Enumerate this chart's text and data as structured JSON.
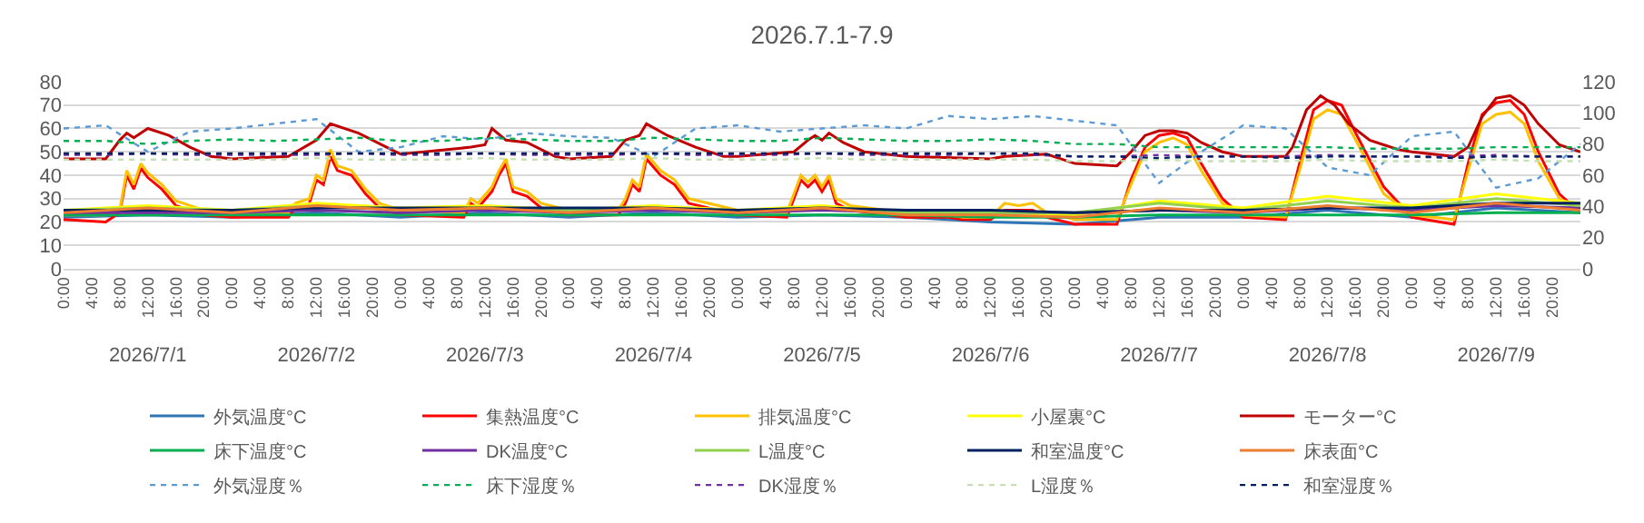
{
  "chart_data": {
    "type": "line",
    "title": "2026.7.1-7.9",
    "x": [
      "2026-07-01T00:00",
      "2026-07-01T12:00",
      "2026-07-02T00:00",
      "2026-07-02T12:00",
      "2026-07-03T00:00",
      "2026-07-03T12:00",
      "2026-07-04T00:00",
      "2026-07-04T12:00",
      "2026-07-05T00:00",
      "2026-07-05T12:00",
      "2026-07-06T00:00",
      "2026-07-06T12:00",
      "2026-07-07T00:00",
      "2026-07-07T12:00",
      "2026-07-08T00:00",
      "2026-07-08T12:00",
      "2026-07-09T00:00",
      "2026-07-09T12:00",
      "2026-07-10T00:00"
    ],
    "xlim": [
      "2026-07-01T00:00",
      "2026-07-10T00:00"
    ],
    "xticks": [
      {
        "value": "2026-07-01T00:00",
        "label": "0:00"
      },
      {
        "value": "2026-07-01T04:00",
        "label": "4:00"
      },
      {
        "value": "2026-07-01T08:00",
        "label": "8:00"
      },
      {
        "value": "2026-07-01T12:00",
        "label": "12:00"
      },
      {
        "value": "2026-07-01T16:00",
        "label": "16:00"
      },
      {
        "value": "2026-07-01T20:00",
        "label": "20:00"
      },
      {
        "value": "2026-07-02T00:00",
        "label": "0:00"
      },
      {
        "value": "2026-07-02T04:00",
        "label": "4:00"
      },
      {
        "value": "2026-07-02T08:00",
        "label": "8:00"
      },
      {
        "value": "2026-07-02T12:00",
        "label": "12:00"
      },
      {
        "value": "2026-07-02T16:00",
        "label": "16:00"
      },
      {
        "value": "2026-07-02T20:00",
        "label": "20:00"
      },
      {
        "value": "2026-07-03T00:00",
        "label": "0:00"
      },
      {
        "value": "2026-07-03T04:00",
        "label": "4:00"
      },
      {
        "value": "2026-07-03T08:00",
        "label": "8:00"
      },
      {
        "value": "2026-07-03T12:00",
        "label": "12:00"
      },
      {
        "value": "2026-07-03T16:00",
        "label": "16:00"
      },
      {
        "value": "2026-07-03T20:00",
        "label": "20:00"
      },
      {
        "value": "2026-07-04T00:00",
        "label": "0:00"
      },
      {
        "value": "2026-07-04T04:00",
        "label": "4:00"
      },
      {
        "value": "2026-07-04T08:00",
        "label": "8:00"
      },
      {
        "value": "2026-07-04T12:00",
        "label": "12:00"
      },
      {
        "value": "2026-07-04T16:00",
        "label": "16:00"
      },
      {
        "value": "2026-07-04T20:00",
        "label": "20:00"
      },
      {
        "value": "2026-07-05T00:00",
        "label": "0:00"
      },
      {
        "value": "2026-07-05T04:00",
        "label": "4:00"
      },
      {
        "value": "2026-07-05T08:00",
        "label": "8:00"
      },
      {
        "value": "2026-07-05T12:00",
        "label": "12:00"
      },
      {
        "value": "2026-07-05T16:00",
        "label": "16:00"
      },
      {
        "value": "2026-07-05T20:00",
        "label": "20:00"
      },
      {
        "value": "2026-07-06T00:00",
        "label": "0:00"
      },
      {
        "value": "2026-07-06T04:00",
        "label": "4:00"
      },
      {
        "value": "2026-07-06T08:00",
        "label": "8:00"
      },
      {
        "value": "2026-07-06T12:00",
        "label": "12:00"
      },
      {
        "value": "2026-07-06T16:00",
        "label": "16:00"
      },
      {
        "value": "2026-07-06T20:00",
        "label": "20:00"
      },
      {
        "value": "2026-07-07T00:00",
        "label": "0:00"
      },
      {
        "value": "2026-07-07T04:00",
        "label": "4:00"
      },
      {
        "value": "2026-07-07T08:00",
        "label": "8:00"
      },
      {
        "value": "2026-07-07T12:00",
        "label": "12:00"
      },
      {
        "value": "2026-07-07T16:00",
        "label": "16:00"
      },
      {
        "value": "2026-07-07T20:00",
        "label": "20:00"
      },
      {
        "value": "2026-07-08T00:00",
        "label": "0:00"
      },
      {
        "value": "2026-07-08T04:00",
        "label": "4:00"
      },
      {
        "value": "2026-07-08T08:00",
        "label": "8:00"
      },
      {
        "value": "2026-07-08T12:00",
        "label": "12:00"
      },
      {
        "value": "2026-07-08T16:00",
        "label": "16:00"
      },
      {
        "value": "2026-07-08T20:00",
        "label": "20:00"
      },
      {
        "value": "2026-07-09T00:00",
        "label": "0:00"
      },
      {
        "value": "2026-07-09T04:00",
        "label": "4:00"
      },
      {
        "value": "2026-07-09T08:00",
        "label": "8:00"
      },
      {
        "value": "2026-07-09T12:00",
        "label": "12:00"
      },
      {
        "value": "2026-07-09T16:00",
        "label": "16:00"
      },
      {
        "value": "2026-07-09T20:00",
        "label": "20:00"
      }
    ],
    "x2lim": [
      "2026-07-01T00:00",
      "2026-07-10T00:00"
    ],
    "x2ticks": [
      {
        "value": "2026-07-01T12:00",
        "label": "2026/7/1"
      },
      {
        "value": "2026-07-02T12:00",
        "label": "2026/7/2"
      },
      {
        "value": "2026-07-03T12:00",
        "label": "2026/7/3"
      },
      {
        "value": "2026-07-04T12:00",
        "label": "2026/7/4"
      },
      {
        "value": "2026-07-05T12:00",
        "label": "2026/7/5"
      },
      {
        "value": "2026-07-06T12:00",
        "label": "2026/7/6"
      },
      {
        "value": "2026-07-07T12:00",
        "label": "2026/7/7"
      },
      {
        "value": "2026-07-08T12:00",
        "label": "2026/7/8"
      },
      {
        "value": "2026-07-09T12:00",
        "label": "2026/7/9"
      }
    ],
    "ylim": [
      0,
      80
    ],
    "yticks": [
      0,
      10,
      20,
      30,
      40,
      50,
      60,
      70,
      80
    ],
    "y2lim": [
      0,
      120
    ],
    "y2ticks": [
      0,
      20,
      40,
      60,
      80,
      100,
      120
    ],
    "grid": "y",
    "legend": "bottom",
    "series": [
      {
        "name": "外気温度°C",
        "color": "#2e75b6",
        "line_style": "solid",
        "values": [
          22,
          23,
          22,
          24,
          22,
          24,
          22,
          24,
          22,
          23,
          22,
          20,
          19,
          22,
          22,
          25,
          22,
          26,
          24
        ]
      },
      {
        "name": "集熱温度°C",
        "color": "#ff0000",
        "line_style": "solid",
        "x": [
          "2026-07-01T00:00",
          "2026-07-01T06:00",
          "2026-07-01T08:00",
          "2026-07-01T09:00",
          "2026-07-01T10:00",
          "2026-07-01T11:00",
          "2026-07-01T12:00",
          "2026-07-01T14:00",
          "2026-07-01T16:00",
          "2026-07-01T18:00",
          "2026-07-01T20:00",
          "2026-07-02T00:00",
          "2026-07-02T08:00",
          "2026-07-02T09:00",
          "2026-07-02T11:00",
          "2026-07-02T12:00",
          "2026-07-02T13:00",
          "2026-07-02T14:00",
          "2026-07-02T15:00",
          "2026-07-02T17:00",
          "2026-07-02T19:00",
          "2026-07-02T21:00",
          "2026-07-03T00:00",
          "2026-07-03T09:00",
          "2026-07-03T10:00",
          "2026-07-03T11:00",
          "2026-07-03T13:00",
          "2026-07-03T14:00",
          "2026-07-03T15:00",
          "2026-07-03T16:00",
          "2026-07-03T18:00",
          "2026-07-03T20:00",
          "2026-07-04T00:00",
          "2026-07-04T07:00",
          "2026-07-04T08:00",
          "2026-07-04T09:00",
          "2026-07-04T10:00",
          "2026-07-04T11:00",
          "2026-07-04T13:00",
          "2026-07-04T15:00",
          "2026-07-04T17:00",
          "2026-07-05T00:00",
          "2026-07-05T07:00",
          "2026-07-05T08:00",
          "2026-07-05T09:00",
          "2026-07-05T10:00",
          "2026-07-05T11:00",
          "2026-07-05T12:00",
          "2026-07-05T13:00",
          "2026-07-05T14:00",
          "2026-07-05T16:00",
          "2026-07-06T00:00",
          "2026-07-06T06:00",
          "2026-07-06T08:00",
          "2026-07-06T12:00",
          "2026-07-06T14:00",
          "2026-07-06T16:00",
          "2026-07-06T18:00",
          "2026-07-06T20:00",
          "2026-07-07T00:00",
          "2026-07-07T06:00",
          "2026-07-07T08:00",
          "2026-07-07T10:00",
          "2026-07-07T12:00",
          "2026-07-07T14:00",
          "2026-07-07T16:00",
          "2026-07-07T18:00",
          "2026-07-07T21:00",
          "2026-07-08T00:00",
          "2026-07-08T06:00",
          "2026-07-08T08:00",
          "2026-07-08T10:00",
          "2026-07-08T12:00",
          "2026-07-08T14:00",
          "2026-07-08T16:00",
          "2026-07-08T20:00",
          "2026-07-09T00:00",
          "2026-07-09T06:00",
          "2026-07-09T08:00",
          "2026-07-09T10:00",
          "2026-07-09T12:00",
          "2026-07-09T14:00",
          "2026-07-09T16:00",
          "2026-07-09T18:00",
          "2026-07-09T21:00",
          "2026-07-10T00:00"
        ],
        "values": [
          21,
          20,
          24,
          40,
          34,
          43,
          39,
          34,
          27,
          25,
          23,
          22,
          22,
          26,
          28,
          38,
          36,
          48,
          42,
          40,
          32,
          26,
          23,
          22,
          28,
          26,
          33,
          40,
          45,
          33,
          31,
          26,
          23,
          23,
          28,
          36,
          33,
          47,
          40,
          36,
          28,
          23,
          22,
          30,
          38,
          35,
          38,
          33,
          38,
          28,
          25,
          22,
          22,
          21,
          21,
          25,
          25,
          25,
          22,
          19,
          19,
          38,
          52,
          57,
          58,
          56,
          45,
          30,
          22,
          21,
          45,
          68,
          72,
          70,
          58,
          35,
          22,
          19,
          45,
          66,
          71,
          72,
          66,
          50,
          32,
          24
        ]
      },
      {
        "name": "排気温度°C",
        "color": "#ffc000",
        "line_style": "solid",
        "x": [
          "2026-07-01T00:00",
          "2026-07-01T06:00",
          "2026-07-01T08:00",
          "2026-07-01T09:00",
          "2026-07-01T10:00",
          "2026-07-01T11:00",
          "2026-07-01T12:00",
          "2026-07-01T14:00",
          "2026-07-01T16:00",
          "2026-07-01T18:00",
          "2026-07-01T20:00",
          "2026-07-02T00:00",
          "2026-07-02T08:00",
          "2026-07-02T09:00",
          "2026-07-02T11:00",
          "2026-07-02T12:00",
          "2026-07-02T13:00",
          "2026-07-02T14:00",
          "2026-07-02T15:00",
          "2026-07-02T17:00",
          "2026-07-02T19:00",
          "2026-07-02T21:00",
          "2026-07-03T00:00",
          "2026-07-03T09:00",
          "2026-07-03T10:00",
          "2026-07-03T11:00",
          "2026-07-03T13:00",
          "2026-07-03T14:00",
          "2026-07-03T15:00",
          "2026-07-03T16:00",
          "2026-07-03T18:00",
          "2026-07-03T20:00",
          "2026-07-04T00:00",
          "2026-07-04T07:00",
          "2026-07-04T08:00",
          "2026-07-04T09:00",
          "2026-07-04T10:00",
          "2026-07-04T11:00",
          "2026-07-04T13:00",
          "2026-07-04T15:00",
          "2026-07-04T17:00",
          "2026-07-05T00:00",
          "2026-07-05T07:00",
          "2026-07-05T08:00",
          "2026-07-05T09:00",
          "2026-07-05T10:00",
          "2026-07-05T11:00",
          "2026-07-05T12:00",
          "2026-07-05T13:00",
          "2026-07-05T14:00",
          "2026-07-05T16:00",
          "2026-07-06T00:00",
          "2026-07-06T06:00",
          "2026-07-06T08:00",
          "2026-07-06T12:00",
          "2026-07-06T14:00",
          "2026-07-06T16:00",
          "2026-07-06T18:00",
          "2026-07-06T20:00",
          "2026-07-07T00:00",
          "2026-07-07T06:00",
          "2026-07-07T08:00",
          "2026-07-07T10:00",
          "2026-07-07T12:00",
          "2026-07-07T14:00",
          "2026-07-07T16:00",
          "2026-07-07T18:00",
          "2026-07-07T21:00",
          "2026-07-08T00:00",
          "2026-07-08T06:00",
          "2026-07-08T08:00",
          "2026-07-08T10:00",
          "2026-07-08T12:00",
          "2026-07-08T14:00",
          "2026-07-08T16:00",
          "2026-07-08T20:00",
          "2026-07-09T00:00",
          "2026-07-09T06:00",
          "2026-07-09T08:00",
          "2026-07-09T10:00",
          "2026-07-09T12:00",
          "2026-07-09T14:00",
          "2026-07-09T16:00",
          "2026-07-09T18:00",
          "2026-07-09T21:00",
          "2026-07-10T00:00"
        ],
        "values": [
          23,
          23,
          25,
          42,
          36,
          45,
          41,
          36,
          29,
          27,
          25,
          24,
          24,
          28,
          30,
          40,
          38,
          51,
          44,
          42,
          34,
          28,
          25,
          24,
          30,
          28,
          35,
          42,
          47,
          35,
          33,
          28,
          25,
          25,
          30,
          38,
          35,
          49,
          42,
          38,
          30,
          25,
          24,
          32,
          40,
          37,
          40,
          35,
          40,
          30,
          27,
          24,
          23,
          22,
          22,
          28,
          27,
          28,
          24,
          21,
          21,
          36,
          50,
          54,
          56,
          53,
          42,
          28,
          23,
          22,
          42,
          64,
          68,
          66,
          55,
          32,
          23,
          21,
          42,
          62,
          66,
          67,
          62,
          46,
          30,
          25
        ]
      },
      {
        "name": "小屋裏°C",
        "color": "#ffff00",
        "line_style": "solid",
        "values": [
          25,
          27,
          25,
          28,
          26,
          27,
          25,
          27,
          25,
          27,
          24,
          24,
          23,
          29,
          26,
          31,
          27,
          32,
          28
        ]
      },
      {
        "name": "モーター°C",
        "color": "#c00000",
        "line_style": "solid",
        "x": [
          "2026-07-01T00:00",
          "2026-07-01T06:00",
          "2026-07-01T08:00",
          "2026-07-01T09:00",
          "2026-07-01T10:00",
          "2026-07-01T12:00",
          "2026-07-01T15:00",
          "2026-07-01T18:00",
          "2026-07-01T21:00",
          "2026-07-02T00:00",
          "2026-07-02T08:00",
          "2026-07-02T12:00",
          "2026-07-02T14:00",
          "2026-07-02T18:00",
          "2026-07-02T22:00",
          "2026-07-03T00:00",
          "2026-07-03T10:00",
          "2026-07-03T12:00",
          "2026-07-03T13:00",
          "2026-07-03T15:00",
          "2026-07-03T18:00",
          "2026-07-03T22:00",
          "2026-07-04T00:00",
          "2026-07-04T06:00",
          "2026-07-04T08:00",
          "2026-07-04T10:00",
          "2026-07-04T11:00",
          "2026-07-04T14:00",
          "2026-07-04T18:00",
          "2026-07-04T22:00",
          "2026-07-05T00:00",
          "2026-07-05T08:00",
          "2026-07-05T10:00",
          "2026-07-05T11:00",
          "2026-07-05T12:00",
          "2026-07-05T13:00",
          "2026-07-05T15:00",
          "2026-07-05T18:00",
          "2026-07-06T00:00",
          "2026-07-06T12:00",
          "2026-07-06T14:00",
          "2026-07-06T20:00",
          "2026-07-07T00:00",
          "2026-07-07T06:00",
          "2026-07-07T08:00",
          "2026-07-07T10:00",
          "2026-07-07T12:00",
          "2026-07-07T14:00",
          "2026-07-07T16:00",
          "2026-07-07T18:00",
          "2026-07-07T21:00",
          "2026-07-08T00:00",
          "2026-07-08T06:00",
          "2026-07-08T07:00",
          "2026-07-08T09:00",
          "2026-07-08T11:00",
          "2026-07-08T13:00",
          "2026-07-08T15:00",
          "2026-07-08T18:00",
          "2026-07-08T22:00",
          "2026-07-09T00:00",
          "2026-07-09T06:00",
          "2026-07-09T08:00",
          "2026-07-09T10:00",
          "2026-07-09T12:00",
          "2026-07-09T14:00",
          "2026-07-09T16:00",
          "2026-07-09T18:00",
          "2026-07-09T21:00",
          "2026-07-10T00:00"
        ],
        "values": [
          47,
          47,
          55,
          58,
          56,
          60,
          57,
          52,
          48,
          47,
          48,
          55,
          62,
          58,
          52,
          49,
          52,
          53,
          60,
          55,
          54,
          48,
          47,
          48,
          55,
          57,
          62,
          57,
          52,
          48,
          48,
          50,
          55,
          57,
          55,
          58,
          54,
          50,
          48,
          47,
          48,
          49,
          45,
          44,
          50,
          57,
          59,
          59,
          58,
          54,
          50,
          48,
          48,
          52,
          68,
          74,
          70,
          62,
          55,
          51,
          50,
          48,
          52,
          65,
          73,
          74,
          70,
          62,
          53,
          50
        ]
      },
      {
        "name": "床下温度°C",
        "color": "#00b050",
        "line_style": "solid",
        "values": [
          23,
          23,
          23,
          23,
          23,
          23,
          23,
          23,
          23,
          23,
          23,
          22,
          22,
          23,
          23,
          23,
          23,
          24,
          24
        ]
      },
      {
        "name": "DK温度°C",
        "color": "#7030a0",
        "line_style": "solid",
        "values": [
          24,
          24,
          24,
          25,
          24,
          25,
          24,
          25,
          24,
          25,
          24,
          24,
          24,
          25,
          24,
          26,
          25,
          27,
          26
        ]
      },
      {
        "name": "L温度°C",
        "color": "#92d050",
        "line_style": "solid",
        "values": [
          25,
          26,
          25,
          27,
          25,
          26,
          25,
          26,
          25,
          26,
          24,
          24,
          24,
          28,
          25,
          29,
          26,
          30,
          27
        ]
      },
      {
        "name": "和室温度°C",
        "color": "#002060",
        "line_style": "solid",
        "values": [
          25,
          25,
          25,
          26,
          26,
          26,
          26,
          26,
          25,
          26,
          25,
          25,
          24,
          25,
          25,
          26,
          26,
          28,
          28
        ]
      },
      {
        "name": "床表面°C",
        "color": "#ed7d31",
        "line_style": "solid",
        "values": [
          24,
          26,
          24,
          27,
          25,
          26,
          24,
          26,
          24,
          26,
          23,
          23,
          22,
          26,
          24,
          27,
          24,
          28,
          25
        ]
      },
      {
        "name": "外気湿度％",
        "color": "#5b9bd5",
        "line_style": "dotted",
        "axis": "y2",
        "x": [
          "2026-07-01T00:00",
          "2026-07-01T06:00",
          "2026-07-01T12:00",
          "2026-07-01T18:00",
          "2026-07-02T00:00",
          "2026-07-02T06:00",
          "2026-07-02T12:00",
          "2026-07-02T18:00",
          "2026-07-03T00:00",
          "2026-07-03T06:00",
          "2026-07-03T12:00",
          "2026-07-03T18:00",
          "2026-07-04T00:00",
          "2026-07-04T06:00",
          "2026-07-04T12:00",
          "2026-07-04T18:00",
          "2026-07-05T00:00",
          "2026-07-05T06:00",
          "2026-07-05T12:00",
          "2026-07-05T18:00",
          "2026-07-06T00:00",
          "2026-07-06T06:00",
          "2026-07-06T12:00",
          "2026-07-06T18:00",
          "2026-07-07T00:00",
          "2026-07-07T06:00",
          "2026-07-07T12:00",
          "2026-07-07T18:00",
          "2026-07-08T00:00",
          "2026-07-08T06:00",
          "2026-07-08T12:00",
          "2026-07-08T18:00",
          "2026-07-09T00:00",
          "2026-07-09T06:00",
          "2026-07-09T12:00",
          "2026-07-09T18:00",
          "2026-07-10T00:00"
        ],
        "values": [
          90,
          92,
          75,
          88,
          90,
          93,
          96,
          75,
          78,
          85,
          83,
          87,
          85,
          84,
          72,
          90,
          92,
          88,
          90,
          92,
          90,
          98,
          96,
          98,
          95,
          92,
          55,
          75,
          92,
          90,
          65,
          60,
          85,
          88,
          52,
          58,
          80
        ]
      },
      {
        "name": "床下湿度％",
        "color": "#00b050",
        "line_style": "dotted",
        "axis": "y2",
        "x": [
          "2026-07-01T00:00",
          "2026-07-01T06:00",
          "2026-07-01T12:00",
          "2026-07-01T18:00",
          "2026-07-02T00:00",
          "2026-07-02T06:00",
          "2026-07-02T12:00",
          "2026-07-02T18:00",
          "2026-07-03T00:00",
          "2026-07-03T06:00",
          "2026-07-03T12:00",
          "2026-07-03T18:00",
          "2026-07-04T00:00",
          "2026-07-04T06:00",
          "2026-07-04T12:00",
          "2026-07-04T18:00",
          "2026-07-05T00:00",
          "2026-07-05T06:00",
          "2026-07-05T12:00",
          "2026-07-05T18:00",
          "2026-07-06T00:00",
          "2026-07-06T06:00",
          "2026-07-06T12:00",
          "2026-07-06T18:00",
          "2026-07-07T00:00",
          "2026-07-07T06:00",
          "2026-07-07T12:00",
          "2026-07-07T18:00",
          "2026-07-08T00:00",
          "2026-07-08T06:00",
          "2026-07-08T12:00",
          "2026-07-08T18:00",
          "2026-07-09T00:00",
          "2026-07-09T06:00",
          "2026-07-09T12:00",
          "2026-07-09T18:00",
          "2026-07-10T00:00"
        ],
        "values": [
          82,
          82,
          80,
          82,
          83,
          82,
          83,
          84,
          82,
          82,
          84,
          83,
          82,
          82,
          84,
          83,
          82,
          82,
          84,
          83,
          82,
          82,
          83,
          82,
          80,
          80,
          78,
          78,
          78,
          78,
          78,
          77,
          77,
          77,
          78,
          78,
          78
        ]
      },
      {
        "name": "DK湿度％",
        "color": "#7030a0",
        "line_style": "dotted",
        "axis": "y2",
        "x": [
          "2026-07-01T00:00",
          "2026-07-01T06:00",
          "2026-07-01T12:00",
          "2026-07-01T18:00",
          "2026-07-02T00:00",
          "2026-07-02T06:00",
          "2026-07-02T12:00",
          "2026-07-02T18:00",
          "2026-07-03T00:00",
          "2026-07-03T06:00",
          "2026-07-03T12:00",
          "2026-07-03T18:00",
          "2026-07-04T00:00",
          "2026-07-04T06:00",
          "2026-07-04T12:00",
          "2026-07-04T18:00",
          "2026-07-05T00:00",
          "2026-07-05T06:00",
          "2026-07-05T12:00",
          "2026-07-05T18:00",
          "2026-07-06T00:00",
          "2026-07-06T06:00",
          "2026-07-06T12:00",
          "2026-07-06T18:00",
          "2026-07-07T00:00",
          "2026-07-07T06:00",
          "2026-07-07T12:00",
          "2026-07-07T18:00",
          "2026-07-08T00:00",
          "2026-07-08T06:00",
          "2026-07-08T12:00",
          "2026-07-08T18:00",
          "2026-07-09T00:00",
          "2026-07-09T06:00",
          "2026-07-09T12:00",
          "2026-07-09T18:00",
          "2026-07-10T00:00"
        ],
        "values": [
          73,
          73,
          74,
          73,
          73,
          73,
          73,
          74,
          73,
          73,
          74,
          73,
          73,
          73,
          74,
          73,
          73,
          73,
          74,
          73,
          73,
          73,
          74,
          73,
          72,
          72,
          73,
          72,
          72,
          72,
          73,
          72,
          72,
          72,
          73,
          72,
          72
        ]
      },
      {
        "name": "L湿度％",
        "color": "#c5e0b4",
        "line_style": "dotted",
        "axis": "y2",
        "x": [
          "2026-07-01T00:00",
          "2026-07-01T06:00",
          "2026-07-01T12:00",
          "2026-07-01T18:00",
          "2026-07-02T00:00",
          "2026-07-02T06:00",
          "2026-07-02T12:00",
          "2026-07-02T18:00",
          "2026-07-03T00:00",
          "2026-07-03T06:00",
          "2026-07-03T12:00",
          "2026-07-03T18:00",
          "2026-07-04T00:00",
          "2026-07-04T06:00",
          "2026-07-04T12:00",
          "2026-07-04T18:00",
          "2026-07-05T00:00",
          "2026-07-05T06:00",
          "2026-07-05T12:00",
          "2026-07-05T18:00",
          "2026-07-06T00:00",
          "2026-07-06T06:00",
          "2026-07-06T12:00",
          "2026-07-06T18:00",
          "2026-07-07T00:00",
          "2026-07-07T06:00",
          "2026-07-07T12:00",
          "2026-07-07T18:00",
          "2026-07-08T00:00",
          "2026-07-08T06:00",
          "2026-07-08T12:00",
          "2026-07-08T18:00",
          "2026-07-09T00:00",
          "2026-07-09T06:00",
          "2026-07-09T12:00",
          "2026-07-09T18:00",
          "2026-07-10T00:00"
        ],
        "values": [
          70,
          70,
          70,
          70,
          70,
          70,
          71,
          70,
          70,
          70,
          71,
          70,
          70,
          70,
          71,
          70,
          70,
          70,
          71,
          70,
          70,
          70,
          70,
          70,
          69,
          69,
          70,
          69,
          69,
          69,
          70,
          69,
          69,
          69,
          70,
          69,
          69
        ]
      },
      {
        "name": "和室湿度％",
        "color": "#002060",
        "line_style": "dotted",
        "axis": "y2",
        "x": [
          "2026-07-01T00:00",
          "2026-07-01T06:00",
          "2026-07-01T12:00",
          "2026-07-01T18:00",
          "2026-07-02T00:00",
          "2026-07-02T06:00",
          "2026-07-02T12:00",
          "2026-07-02T18:00",
          "2026-07-03T00:00",
          "2026-07-03T06:00",
          "2026-07-03T12:00",
          "2026-07-03T18:00",
          "2026-07-04T00:00",
          "2026-07-04T06:00",
          "2026-07-04T12:00",
          "2026-07-04T18:00",
          "2026-07-05T00:00",
          "2026-07-05T06:00",
          "2026-07-05T12:00",
          "2026-07-05T18:00",
          "2026-07-06T00:00",
          "2026-07-06T06:00",
          "2026-07-06T12:00",
          "2026-07-06T18:00",
          "2026-07-07T00:00",
          "2026-07-07T06:00",
          "2026-07-07T12:00",
          "2026-07-07T18:00",
          "2026-07-08T00:00",
          "2026-07-08T06:00",
          "2026-07-08T12:00",
          "2026-07-08T18:00",
          "2026-07-09T00:00",
          "2026-07-09T06:00",
          "2026-07-09T12:00",
          "2026-07-09T18:00",
          "2026-07-10T00:00"
        ],
        "values": [
          74,
          74,
          74,
          74,
          74,
          74,
          74,
          74,
          74,
          74,
          74,
          74,
          74,
          74,
          74,
          74,
          74,
          74,
          74,
          74,
          74,
          74,
          74,
          74,
          72,
          72,
          71,
          72,
          72,
          71,
          72,
          72,
          72,
          71,
          72,
          72,
          72
        ]
      }
    ]
  }
}
